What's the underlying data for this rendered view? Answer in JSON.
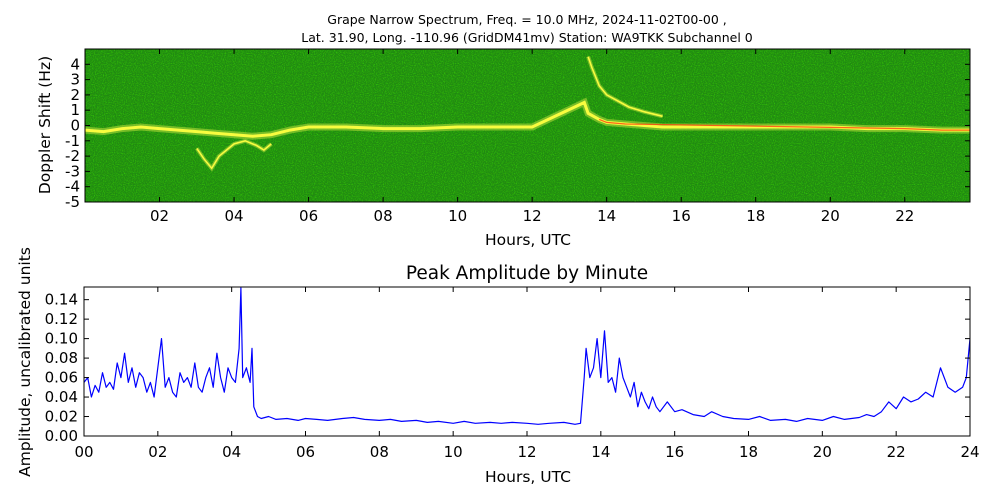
{
  "figure": {
    "title_line1": "Grape Narrow Spectrum, Freq. = 10.0 MHz, 2024-11-02T00-00 ,",
    "title_line2": "Lat.  31.90, Long. -110.96 (GridDM41mv) Station: WA9TKK Subchannel 0"
  },
  "chart_data": [
    {
      "type": "heatmap",
      "title": "",
      "xlabel": "Hours, UTC",
      "ylabel": "Doppler Shift (Hz)",
      "xlim": [
        0,
        23.75
      ],
      "ylim": [
        -5,
        5
      ],
      "xtick_labels": [
        "02",
        "04",
        "06",
        "08",
        "10",
        "12",
        "14",
        "16",
        "18",
        "20",
        "22"
      ],
      "xtick_values": [
        2,
        4,
        6,
        8,
        10,
        12,
        14,
        16,
        18,
        20,
        22
      ],
      "ytick_labels": [
        "4",
        "3",
        "2",
        "1",
        "0",
        "-1",
        "-2",
        "-3",
        "-4",
        "-5"
      ],
      "ytick_values": [
        4,
        3,
        2,
        1,
        0,
        -1,
        -2,
        -3,
        -4,
        -5
      ],
      "colors": {
        "background": "#1f8a12",
        "mid": "#9acd32",
        "peak": "#ffff40",
        "hot": "#ff4010"
      },
      "traces": [
        {
          "name_visible": false,
          "x": [
            0.0,
            0.5,
            1.0,
            1.5,
            2.0,
            2.5,
            3.0,
            3.5,
            4.0,
            4.5,
            5.0,
            5.5,
            6.0,
            7.0,
            8.0,
            9.0,
            10.0,
            11.0,
            12.0,
            13.4,
            13.5,
            13.8,
            14.0,
            14.5,
            15.0,
            15.5,
            16.0,
            17.0,
            18.0,
            19.0,
            20.0,
            21.0,
            22.0,
            23.0,
            23.75
          ],
          "y": [
            -0.3,
            -0.4,
            -0.2,
            -0.1,
            -0.2,
            -0.3,
            -0.4,
            -0.5,
            -0.6,
            -0.7,
            -0.6,
            -0.3,
            -0.1,
            -0.1,
            -0.2,
            -0.2,
            -0.1,
            -0.1,
            -0.1,
            1.5,
            0.8,
            0.4,
            0.2,
            0.1,
            0.0,
            -0.1,
            -0.1,
            -0.1,
            -0.1,
            -0.1,
            -0.1,
            -0.2,
            -0.2,
            -0.3,
            -0.3
          ]
        },
        {
          "x": [
            3.0,
            3.2,
            3.4,
            3.6,
            3.8,
            4.0,
            4.3,
            4.6,
            4.8,
            5.0
          ],
          "y": [
            -1.5,
            -2.2,
            -2.8,
            -2.0,
            -1.6,
            -1.2,
            -1.0,
            -1.3,
            -1.6,
            -1.2
          ]
        },
        {
          "x": [
            13.5,
            13.6,
            13.7,
            13.8,
            14.0,
            14.3,
            14.6,
            15.0,
            15.5
          ],
          "y": [
            4.5,
            3.8,
            3.2,
            2.6,
            2.0,
            1.6,
            1.2,
            0.9,
            0.6
          ]
        }
      ]
    },
    {
      "type": "line",
      "title": "Peak Amplitude by Minute",
      "xlabel": "Hours, UTC",
      "ylabel": "Amplitude, uncalibrated units",
      "xlim": [
        0,
        24
      ],
      "ylim": [
        0,
        0.153
      ],
      "xtick_labels": [
        "00",
        "02",
        "04",
        "06",
        "08",
        "10",
        "12",
        "14",
        "16",
        "18",
        "20",
        "22",
        "24"
      ],
      "xtick_values": [
        0,
        2,
        4,
        6,
        8,
        10,
        12,
        14,
        16,
        18,
        20,
        22,
        24
      ],
      "ytick_labels": [
        "0.00",
        "0.02",
        "0.04",
        "0.06",
        "0.08",
        "0.10",
        "0.12",
        "0.14"
      ],
      "ytick_values": [
        0,
        0.02,
        0.04,
        0.06,
        0.08,
        0.1,
        0.12,
        0.14
      ],
      "line_color": "#0000ff",
      "series": [
        {
          "x": [
            0.0,
            0.1,
            0.2,
            0.3,
            0.4,
            0.5,
            0.6,
            0.7,
            0.8,
            0.9,
            1.0,
            1.1,
            1.2,
            1.3,
            1.4,
            1.5,
            1.6,
            1.7,
            1.8,
            1.9,
            2.0,
            2.1,
            2.2,
            2.3,
            2.4,
            2.5,
            2.6,
            2.7,
            2.8,
            2.9,
            3.0,
            3.1,
            3.2,
            3.3,
            3.4,
            3.5,
            3.6,
            3.7,
            3.8,
            3.9,
            4.0,
            4.1,
            4.2,
            4.25,
            4.3,
            4.4,
            4.5,
            4.55,
            4.6,
            4.7,
            4.8,
            5.0,
            5.2,
            5.5,
            5.8,
            6.0,
            6.3,
            6.6,
            7.0,
            7.3,
            7.6,
            8.0,
            8.3,
            8.6,
            9.0,
            9.3,
            9.6,
            10.0,
            10.3,
            10.6,
            11.0,
            11.3,
            11.6,
            12.0,
            12.3,
            12.6,
            13.0,
            13.3,
            13.45,
            13.55,
            13.6,
            13.7,
            13.8,
            13.9,
            14.0,
            14.1,
            14.2,
            14.3,
            14.4,
            14.5,
            14.6,
            14.7,
            14.8,
            14.9,
            15.0,
            15.1,
            15.2,
            15.3,
            15.4,
            15.5,
            15.6,
            15.8,
            16.0,
            16.2,
            16.5,
            16.8,
            17.0,
            17.3,
            17.6,
            18.0,
            18.3,
            18.6,
            19.0,
            19.3,
            19.6,
            20.0,
            20.3,
            20.6,
            21.0,
            21.2,
            21.4,
            21.6,
            21.8,
            22.0,
            22.2,
            22.4,
            22.6,
            22.8,
            23.0,
            23.2,
            23.4,
            23.6,
            23.8,
            23.9,
            24.0
          ],
          "y": [
            0.055,
            0.06,
            0.04,
            0.052,
            0.045,
            0.065,
            0.05,
            0.055,
            0.048,
            0.075,
            0.06,
            0.085,
            0.055,
            0.07,
            0.05,
            0.065,
            0.06,
            0.045,
            0.055,
            0.04,
            0.07,
            0.1,
            0.05,
            0.06,
            0.045,
            0.04,
            0.065,
            0.055,
            0.06,
            0.05,
            0.075,
            0.05,
            0.045,
            0.06,
            0.07,
            0.05,
            0.085,
            0.06,
            0.045,
            0.07,
            0.06,
            0.055,
            0.09,
            0.152,
            0.06,
            0.07,
            0.055,
            0.09,
            0.03,
            0.02,
            0.018,
            0.02,
            0.017,
            0.018,
            0.016,
            0.018,
            0.017,
            0.016,
            0.018,
            0.019,
            0.017,
            0.016,
            0.017,
            0.015,
            0.016,
            0.014,
            0.015,
            0.013,
            0.015,
            0.013,
            0.014,
            0.013,
            0.014,
            0.013,
            0.012,
            0.013,
            0.014,
            0.012,
            0.013,
            0.06,
            0.09,
            0.06,
            0.07,
            0.1,
            0.06,
            0.108,
            0.055,
            0.06,
            0.045,
            0.08,
            0.06,
            0.05,
            0.04,
            0.055,
            0.03,
            0.045,
            0.035,
            0.028,
            0.04,
            0.03,
            0.025,
            0.035,
            0.025,
            0.027,
            0.022,
            0.02,
            0.025,
            0.02,
            0.018,
            0.017,
            0.02,
            0.016,
            0.017,
            0.015,
            0.018,
            0.016,
            0.02,
            0.017,
            0.019,
            0.022,
            0.02,
            0.025,
            0.035,
            0.028,
            0.04,
            0.035,
            0.038,
            0.045,
            0.04,
            0.07,
            0.05,
            0.045,
            0.05,
            0.06,
            0.1
          ]
        }
      ]
    }
  ]
}
